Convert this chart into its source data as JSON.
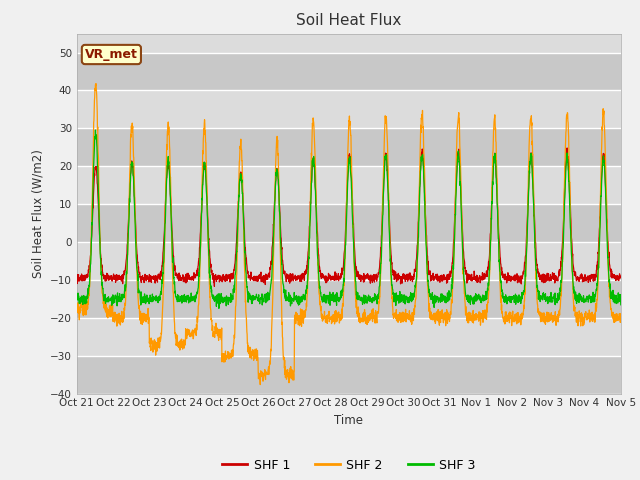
{
  "title": "Soil Heat Flux",
  "ylabel": "Soil Heat Flux (W/m2)",
  "xlabel": "Time",
  "xlabels": [
    "Oct 21",
    "Oct 22",
    "Oct 23",
    "Oct 24",
    "Oct 25",
    "Oct 26",
    "Oct 27",
    "Oct 28",
    "Oct 29",
    "Oct 30",
    "Oct 31",
    "Nov 1",
    "Nov 2",
    "Nov 3",
    "Nov 4",
    "Nov 5"
  ],
  "ylim": [
    -40,
    55
  ],
  "yticks": [
    -40,
    -30,
    -20,
    -10,
    0,
    10,
    20,
    30,
    40,
    50
  ],
  "colors": {
    "SHF 1": "#cc0000",
    "SHF 2": "#ff9900",
    "SHF 3": "#00bb00"
  },
  "legend_label": "VR_met",
  "bg_plot": "#dcdcdc",
  "bg_figure": "#f0f0f0",
  "grid_color": "#ffffff",
  "n_days": 15,
  "pts_per_day": 144,
  "day_amp1": [
    20,
    21,
    21,
    21,
    18,
    19,
    22,
    23,
    23,
    24,
    24,
    23,
    23,
    24,
    23
  ],
  "day_amp2": [
    42,
    31,
    31,
    31,
    26,
    27,
    32,
    32,
    33,
    34,
    33,
    32,
    33,
    34,
    34
  ],
  "day_amp3": [
    29,
    21,
    21,
    21,
    18,
    19,
    22,
    22,
    23,
    23,
    23,
    23,
    23,
    22,
    22
  ],
  "night_off1": -9.5,
  "night_off2": [
    -18,
    -20,
    -27,
    -24,
    -30,
    -35,
    -20,
    -20,
    -20,
    -20,
    -20,
    -20,
    -20,
    -20,
    -20
  ],
  "night_off3": -15
}
